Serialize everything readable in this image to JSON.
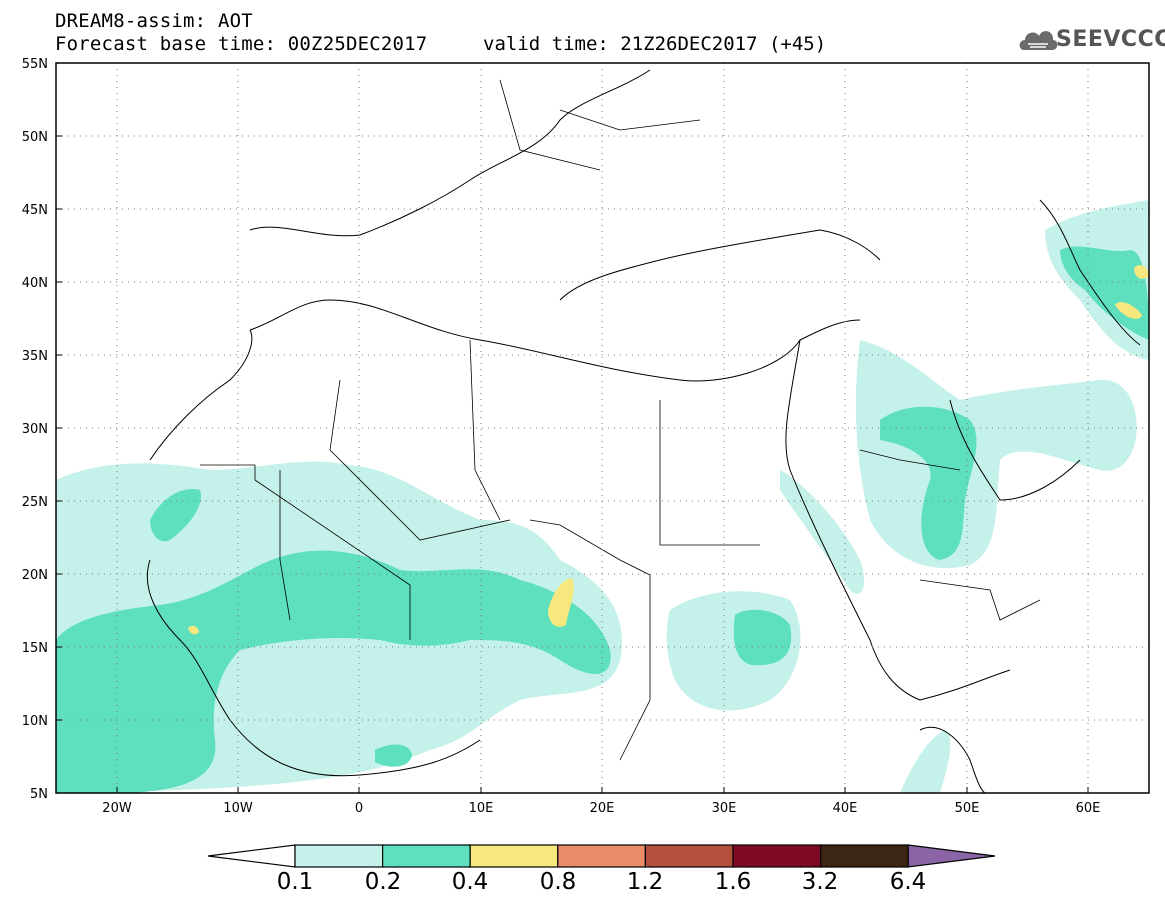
{
  "header": {
    "line1": "DREAM8-assim: AOT",
    "line2": "Forecast base time: 00Z25DEC2017",
    "valid": "valid time: 21Z26DEC2017 (+45)",
    "logo_text": "SEEVCCC"
  },
  "map": {
    "variable": "AOT",
    "lon_range": [
      -25,
      65
    ],
    "lat_range": [
      5,
      55
    ],
    "lat_ticks": [
      "55N",
      "50N",
      "45N",
      "40N",
      "35N",
      "30N",
      "25N",
      "20N",
      "15N",
      "10N",
      "5N"
    ],
    "lon_ticks": [
      "20W",
      "10W",
      "0",
      "10E",
      "20E",
      "30E",
      "40E",
      "50E",
      "60E"
    ],
    "grid": "dotted"
  },
  "colorbar": {
    "levels": [
      "0.1",
      "0.2",
      "0.4",
      "0.8",
      "1.2",
      "1.6",
      "3.2",
      "6.4"
    ],
    "colors": [
      "#c4f1e9",
      "#5ee0be",
      "#f6e87e",
      "#e98d68",
      "#b5503e",
      "#7e0a24",
      "#3a2612",
      "#8b64a6"
    ],
    "over_color": "#8b64a6",
    "under_color": "#ffffff"
  }
}
